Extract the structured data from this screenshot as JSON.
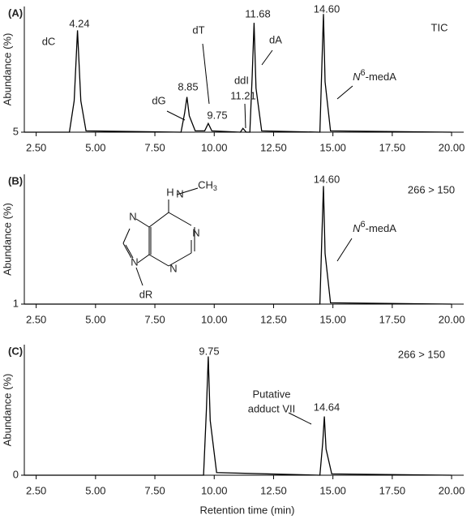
{
  "chart_data": [
    {
      "type": "line",
      "panel": "(A)",
      "y_label": "Abundance (%)",
      "trace": "TIC",
      "color": "#000000",
      "x": [
        2.0,
        3.9,
        4.1,
        4.24,
        4.38,
        4.6,
        8.6,
        8.75,
        8.85,
        8.95,
        9.2,
        9.6,
        9.75,
        9.9,
        11.1,
        11.21,
        11.35,
        11.5,
        11.6,
        11.68,
        11.76,
        12.0,
        14.45,
        14.53,
        14.6,
        14.67,
        14.9,
        20.0
      ],
      "values": [
        5,
        5,
        30,
        86,
        30,
        6,
        5,
        20,
        33,
        18,
        6,
        6,
        12,
        6,
        5,
        8,
        5,
        5,
        50,
        92,
        40,
        6,
        5,
        55,
        99,
        45,
        6,
        5
      ],
      "xlim": [
        2.0,
        20.1
      ],
      "xticks": [
        {
          "value": 2.5,
          "label": "2.50"
        },
        {
          "value": 5,
          "label": "5.00"
        },
        {
          "value": 7.5,
          "label": "7.50"
        },
        {
          "value": 10,
          "label": "10.00"
        },
        {
          "value": 12.5,
          "label": "12.50"
        },
        {
          "value": 15,
          "label": "15.00"
        },
        {
          "value": 17.5,
          "label": "17.50"
        },
        {
          "value": 20,
          "label": "20.00"
        }
      ],
      "ylim": [
        5,
        105
      ],
      "yticks": [
        5
      ],
      "annotations": [
        "dC",
        "4.24",
        "dG",
        "8.85",
        "dT",
        "9.75",
        "ddI",
        "11.21",
        "dA",
        "11.68",
        "14.60",
        [
          "N",
          "6",
          "-medA"
        ]
      ]
    },
    {
      "type": "line",
      "panel": "(B)",
      "y_label": "Abundance (%)",
      "trace": "266 > 150",
      "color": "#000000",
      "x": [
        2.0,
        14.45,
        14.53,
        14.6,
        14.67,
        14.9,
        20.0
      ],
      "values": [
        1,
        1,
        50,
        92,
        40,
        2,
        1
      ],
      "xlim": [
        2.0,
        20.1
      ],
      "xticks": [
        {
          "value": 2.5,
          "label": "2.50"
        },
        {
          "value": 5,
          "label": "5.00"
        },
        {
          "value": 7.5,
          "label": "7.50"
        },
        {
          "value": 10,
          "label": "10.00"
        },
        {
          "value": 12.5,
          "label": "12.50"
        },
        {
          "value": 15,
          "label": "15.00"
        },
        {
          "value": 17.5,
          "label": "17.50"
        },
        {
          "value": 20,
          "label": "20.00"
        }
      ],
      "ylim": [
        1,
        101
      ],
      "yticks": [
        1
      ],
      "annotations": [
        "14.60",
        [
          "N",
          "6",
          "-medA"
        ]
      ],
      "structure_labels": [
        "H",
        "N",
        "CH",
        "3",
        "N",
        "N",
        "N",
        "N",
        "dR"
      ]
    },
    {
      "type": "line",
      "panel": "(C)",
      "y_label": "Abundance (%)",
      "trace": "266 > 150",
      "color": "#000000",
      "x": [
        2.0,
        9.55,
        9.67,
        9.75,
        9.83,
        10.1,
        14.45,
        14.57,
        14.64,
        14.71,
        14.95,
        20.0
      ],
      "values": [
        0,
        0,
        50,
        91,
        42,
        2,
        0,
        25,
        45,
        20,
        1,
        0
      ],
      "xlim": [
        2.0,
        20.1
      ],
      "xticks": [
        {
          "value": 2.5,
          "label": "2.50"
        },
        {
          "value": 5,
          "label": "5.00"
        },
        {
          "value": 7.5,
          "label": "7.50"
        },
        {
          "value": 10,
          "label": "10.00"
        },
        {
          "value": 12.5,
          "label": "12.50"
        },
        {
          "value": 15,
          "label": "15.00"
        },
        {
          "value": 17.5,
          "label": "17.50"
        },
        {
          "value": 20,
          "label": "20.00"
        }
      ],
      "ylim": [
        0,
        100
      ],
      "yticks": [
        0
      ],
      "annotations": [
        "9.75",
        "14.64",
        "Putative",
        "adduct VII"
      ],
      "x_label": "Retention time (min)"
    }
  ]
}
